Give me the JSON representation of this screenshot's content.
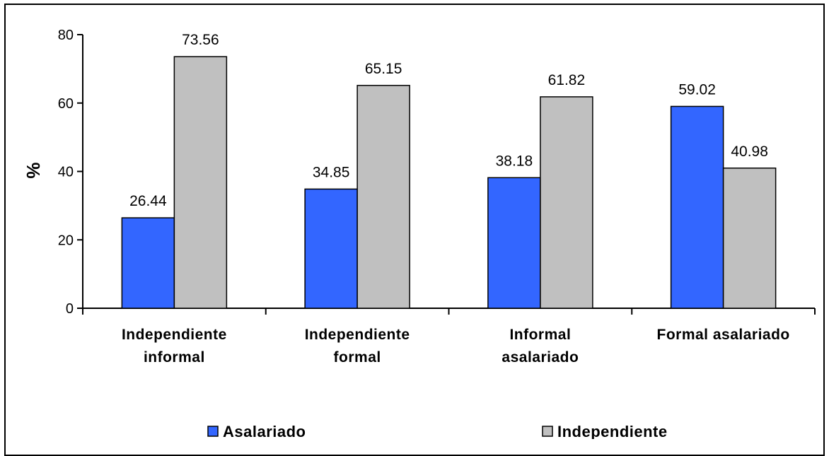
{
  "chart_data": {
    "type": "bar",
    "categories": [
      [
        "Independiente",
        "informal"
      ],
      [
        "Independiente",
        "formal"
      ],
      [
        "Informal",
        "asalariado"
      ],
      [
        "Formal asalariado"
      ]
    ],
    "series": [
      {
        "name": "Asalariado",
        "color": "#3366ff",
        "values": [
          26.44,
          34.85,
          38.18,
          59.02
        ],
        "labels": [
          "26.44",
          "34.85",
          "38.18",
          "59.02"
        ]
      },
      {
        "name": "Independiente",
        "color": "#c0c0c0",
        "values": [
          73.56,
          65.15,
          61.82,
          40.98
        ],
        "labels": [
          "73.56",
          "65.15",
          "61.82",
          "40.98"
        ]
      }
    ],
    "ylabel": "%",
    "xlabel": "",
    "ylim": [
      0,
      80
    ],
    "yticks": [
      "0",
      "20",
      "40",
      "60",
      "80"
    ],
    "grid": false,
    "legend_position": "bottom"
  }
}
